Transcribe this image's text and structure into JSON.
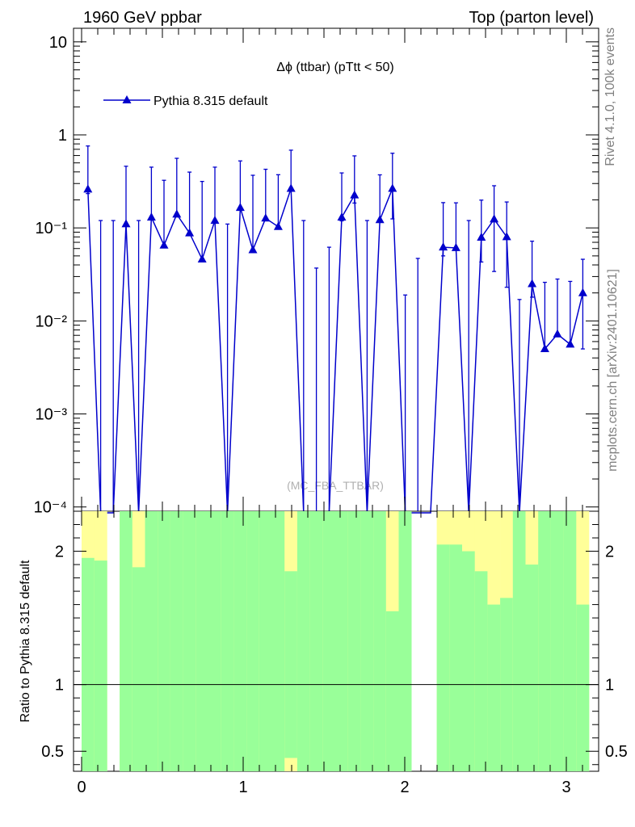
{
  "header": {
    "left_label": "1960 GeV ppbar",
    "right_label": "Top (parton level)"
  },
  "side_labels": {
    "rivet": "Rivet 4.1.0,  100k events",
    "site": "mcplots.cern.ch [arXiv:2401.10621]"
  },
  "chart_data": [
    {
      "type": "line",
      "title": "Δϕ (ttbar) (pTtt < 50)",
      "watermark": "(MC_FBA_TTBAR)",
      "yscale": "log",
      "ylim": [
        9e-05,
        14
      ],
      "xlim": [
        -0.05,
        3.2
      ],
      "ytick_values": [
        0.0001,
        0.001,
        0.01,
        0.1,
        1,
        10
      ],
      "ytick_labels": [
        "10⁻⁴",
        "10⁻³",
        "10⁻²",
        "10⁻¹",
        "1",
        "10"
      ],
      "legend": "Pythia 8.315 default",
      "legend_position": "top-left",
      "color": "#0000cc",
      "bins": 40,
      "series": [
        {
          "name": "Pythia 8.315 default",
          "x": [
            0.039,
            0.118,
            0.196,
            0.275,
            0.353,
            0.432,
            0.51,
            0.589,
            0.668,
            0.746,
            0.825,
            0.903,
            0.982,
            1.06,
            1.139,
            1.217,
            1.296,
            1.374,
            1.453,
            1.532,
            1.61,
            1.689,
            1.767,
            1.846,
            1.924,
            2.003,
            2.081,
            2.16,
            2.238,
            2.317,
            2.396,
            2.474,
            2.553,
            2.631,
            2.71,
            2.788,
            2.867,
            2.945,
            3.024,
            3.102
          ],
          "values": [
            0.26,
            0,
            0,
            0.11,
            0,
            0.13,
            0.065,
            0.14,
            0.088,
            0.046,
            0.12,
            0,
            0.165,
            0.058,
            0.127,
            0.103,
            0.265,
            0,
            0,
            0,
            0.13,
            0.225,
            0,
            0.122,
            0.265,
            0,
            0,
            0,
            0.062,
            0.061,
            0,
            0.079,
            0.124,
            0.08,
            0,
            0.025,
            0.005,
            0.0072,
            0.0056,
            0.02
          ],
          "err_up": [
            0.5,
            0.12,
            0.12,
            0.35,
            0.12,
            0.32,
            0.26,
            0.42,
            0.31,
            0.27,
            0.33,
            0.11,
            0.36,
            0.31,
            0.3,
            0.27,
            0.42,
            0.12,
            0.037,
            0.062,
            0.26,
            0.37,
            0.12,
            0.25,
            0.37,
            0.019,
            0.047,
            0,
            0.125,
            0.125,
            0.12,
            0.12,
            0.16,
            0.11,
            0.017,
            0.047,
            0.021,
            0.021,
            0.021,
            0.026
          ],
          "err_down": [
            0.026,
            0,
            0,
            0.0001,
            0,
            0.0001,
            0.0001,
            0.0001,
            0.0001,
            0.0001,
            0.0001,
            0,
            0.0001,
            0.0001,
            0.0001,
            0.0001,
            0.0001,
            0,
            0,
            0,
            0.011,
            0.04,
            0,
            0.0001,
            0.14,
            0,
            0,
            0,
            0.012,
            0.0001,
            0,
            0.036,
            0.09,
            0.057,
            0,
            0.007,
            0.0001,
            0.0001,
            0.0001,
            0.015
          ]
        }
      ]
    },
    {
      "type": "bar",
      "ylabel": "Ratio to Pythia 8.315 default",
      "ylim": [
        0.35,
        2.3
      ],
      "ytick_values": [
        0.5,
        1,
        2
      ],
      "ytick_labels": [
        "0.5",
        "1",
        "2"
      ],
      "xtick_values": [
        0,
        1,
        2,
        3
      ],
      "xtick_labels": [
        "0",
        "1",
        "2",
        "3"
      ],
      "reference_line": 1,
      "band_colors": {
        "stat": "#99ff99",
        "total": "#ffff99"
      },
      "bin_edges": [
        0,
        0.0785,
        0.157,
        0.2355,
        0.314,
        0.3925,
        0.471,
        0.5495,
        0.628,
        0.7065,
        0.785,
        0.8635,
        0.942,
        1.0205,
        1.099,
        1.1775,
        1.256,
        1.3345,
        1.413,
        1.4915,
        1.57,
        1.6485,
        1.727,
        1.8055,
        1.884,
        1.9625,
        2.041,
        2.1195,
        2.198,
        2.2765,
        2.355,
        2.4335,
        2.512,
        2.5905,
        2.669,
        2.7475,
        2.826,
        2.9045,
        2.983,
        3.0615,
        3.14
      ],
      "green_low": [
        0.35,
        0.35,
        0.35,
        0.35,
        0.35,
        0.35,
        0.35,
        0.35,
        0.35,
        0.35,
        0.35,
        0.35,
        0.35,
        0.35,
        0.35,
        0.35,
        0.45,
        0.35,
        0.35,
        0.35,
        0.35,
        0.35,
        0.35,
        0.35,
        0.35,
        0.35,
        0.35,
        0.35,
        0.35,
        0.35,
        0.35,
        0.35,
        0.35,
        0.35,
        0.35,
        0.35,
        0.35,
        0.35,
        0.35,
        0.35
      ],
      "green_high": [
        1.95,
        1.93,
        2.3,
        2.3,
        1.88,
        2.3,
        2.3,
        2.3,
        2.3,
        2.3,
        2.3,
        2.3,
        2.3,
        2.3,
        2.3,
        2.3,
        1.85,
        2.3,
        2.3,
        2.3,
        2.3,
        2.3,
        2.3,
        2.3,
        1.55,
        2.3,
        2.3,
        2.3,
        2.05,
        2.05,
        2.0,
        1.85,
        1.6,
        1.65,
        2.3,
        1.9,
        2.3,
        2.3,
        2.3,
        1.6
      ],
      "yellow_low": [
        0.35,
        0.35,
        0.35,
        0.35,
        0.35,
        0.35,
        0.35,
        0.35,
        0.35,
        0.35,
        0.35,
        0.35,
        0.35,
        0.35,
        0.35,
        0.35,
        0.35,
        0.35,
        0.35,
        0.35,
        0.35,
        0.35,
        0.35,
        0.35,
        0.35,
        0.35,
        0.35,
        0.35,
        0.35,
        0.35,
        0.35,
        0.35,
        0.35,
        0.35,
        0.35,
        0.35,
        0.35,
        0.35,
        0.35,
        0.35
      ],
      "yellow_high": [
        2.3,
        2.3,
        2.3,
        2.3,
        2.3,
        2.3,
        2.3,
        2.3,
        2.3,
        2.3,
        2.3,
        2.3,
        2.3,
        2.3,
        2.3,
        2.3,
        2.3,
        2.3,
        2.3,
        2.3,
        2.3,
        2.3,
        2.3,
        2.3,
        2.3,
        2.3,
        2.3,
        2.3,
        2.3,
        2.3,
        2.3,
        2.3,
        2.3,
        2.3,
        2.3,
        2.3,
        2.3,
        2.3,
        2.3,
        2.3
      ],
      "hidden_bins": [
        2,
        26,
        27
      ]
    }
  ]
}
